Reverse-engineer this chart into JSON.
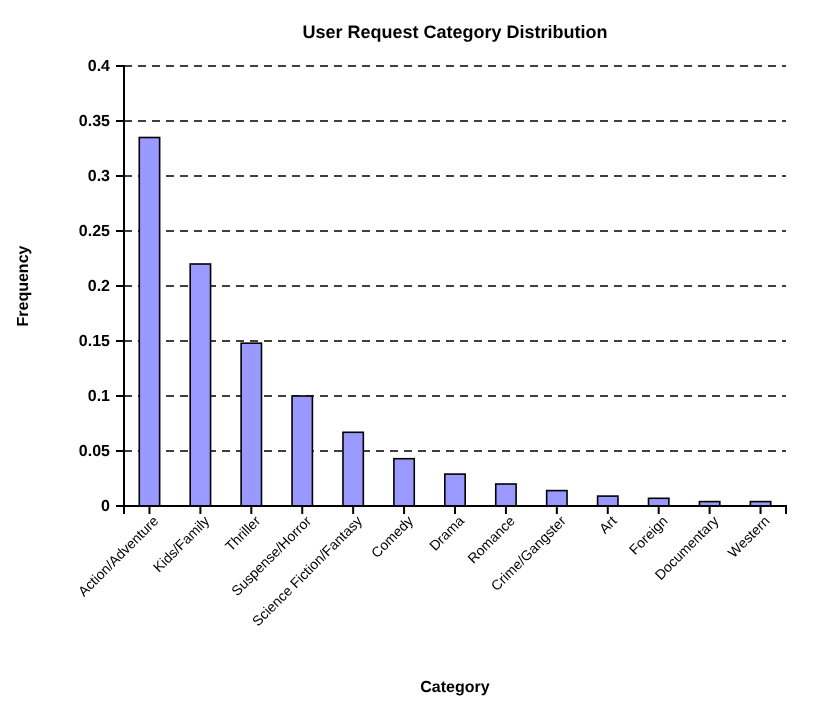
{
  "chart_data": {
    "type": "bar",
    "title": "User Request Category Distribution",
    "xlabel": "Category",
    "ylabel": "Frequency",
    "categories": [
      "Action/Adventure",
      "Kids/Family",
      "Thriller",
      "Suspense/Horror",
      "Science Fiction/Fantasy",
      "Comedy",
      "Drama",
      "Romance",
      "Crime/Gangster",
      "Art",
      "Foreign",
      "Documentary",
      "Western"
    ],
    "values": [
      0.335,
      0.22,
      0.148,
      0.1,
      0.067,
      0.043,
      0.029,
      0.02,
      0.014,
      0.009,
      0.007,
      0.004,
      0.004
    ],
    "color": "#9999ff",
    "ylim": [
      0,
      0.4
    ],
    "yticks": [
      0,
      0.05,
      0.1,
      0.15,
      0.2,
      0.25,
      0.3,
      0.35,
      0.4
    ],
    "grid": "y"
  }
}
